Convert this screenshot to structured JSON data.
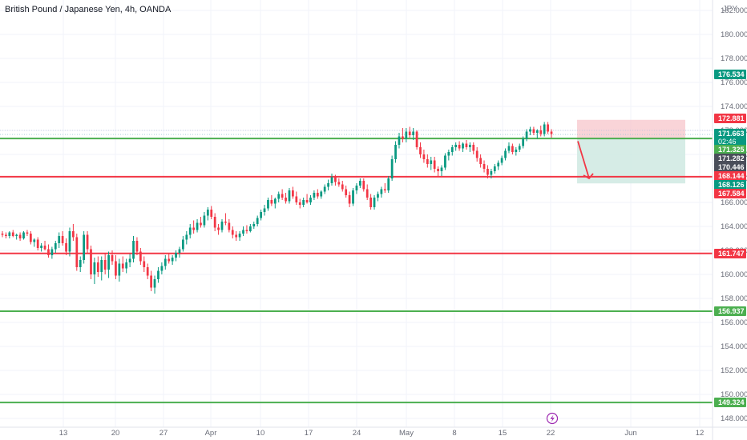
{
  "header": {
    "title": "British Pound / Japanese Yen, 4h, OANDA",
    "currency": "JPY"
  },
  "chart_data": {
    "type": "candlestick",
    "title": "British Pound / Japanese Yen, 4h, OANDA",
    "ylabel": "JPY",
    "ylim": [
      147.2,
      182.4
    ],
    "y_ticks": [
      "148.000",
      "150.000",
      "152.000",
      "154.000",
      "156.000",
      "158.000",
      "160.000",
      "162.000",
      "164.000",
      "166.000",
      "168.000",
      "170.000",
      "172.000",
      "174.000",
      "176.000",
      "178.000",
      "180.000",
      "182.000"
    ],
    "x_ticks": [
      "13",
      "20",
      "27",
      "Apr",
      "10",
      "17",
      "24",
      "May",
      "8",
      "15",
      "22",
      "Jun",
      "12"
    ],
    "horizontal_lines": [
      {
        "price": 171.325,
        "color": "#4caf50"
      },
      {
        "price": 168.144,
        "color": "#f23645"
      },
      {
        "price": 161.747,
        "color": "#f23645"
      },
      {
        "price": 156.937,
        "color": "#4caf50"
      },
      {
        "price": 149.324,
        "color": "#4caf50"
      }
    ],
    "price_tags": [
      {
        "label": "176.534",
        "price": 176.534,
        "color": "#089981"
      },
      {
        "label": "172.881",
        "price": 172.881,
        "color": "#f23645"
      },
      {
        "label": "171.663",
        "sub": "02:46",
        "price": 171.663,
        "color": "#089981"
      },
      {
        "label": "171.325",
        "price": 171.325,
        "color": "#4caf50"
      },
      {
        "label": "171.282",
        "price": 171.282,
        "color": "#4a4e5a"
      },
      {
        "label": "170.446",
        "price": 170.446,
        "color": "#4a4e5a"
      },
      {
        "label": "168.144",
        "price": 168.144,
        "color": "#f23645"
      },
      {
        "label": "168.126",
        "price": 168.126,
        "color": "#089981"
      },
      {
        "label": "167.584",
        "price": 167.584,
        "color": "#f23645"
      },
      {
        "label": "161.747",
        "price": 161.747,
        "color": "#f23645"
      },
      {
        "label": "156.937",
        "price": 156.937,
        "color": "#4caf50"
      },
      {
        "label": "149.324",
        "price": 149.324,
        "color": "#4caf50"
      }
    ],
    "position_tool": {
      "entry": 171.325,
      "stop": 172.881,
      "target": 167.584,
      "stop_color": "#f7c6cb",
      "target_color": "#cfe9e2"
    },
    "ohlc": [
      [
        163.4,
        163.6,
        163.1,
        163.3
      ],
      [
        163.3,
        163.5,
        163.0,
        163.2
      ],
      [
        163.2,
        163.6,
        163.0,
        163.5
      ],
      [
        163.5,
        163.7,
        163.1,
        163.2
      ],
      [
        163.2,
        163.4,
        162.9,
        163.3
      ],
      [
        163.3,
        163.5,
        162.8,
        163.0
      ],
      [
        163.0,
        163.6,
        162.9,
        163.5
      ],
      [
        163.5,
        163.7,
        163.2,
        163.4
      ],
      [
        163.4,
        163.6,
        162.5,
        162.7
      ],
      [
        162.7,
        163.0,
        162.3,
        162.9
      ],
      [
        162.9,
        163.1,
        162.0,
        162.2
      ],
      [
        162.2,
        162.6,
        161.9,
        162.4
      ],
      [
        162.4,
        162.8,
        162.0,
        162.1
      ],
      [
        162.1,
        162.5,
        161.4,
        161.6
      ],
      [
        161.6,
        162.3,
        161.3,
        162.1
      ],
      [
        162.1,
        162.8,
        161.8,
        162.6
      ],
      [
        162.6,
        163.5,
        162.2,
        163.2
      ],
      [
        163.2,
        163.6,
        162.4,
        162.6
      ],
      [
        162.6,
        163.0,
        161.6,
        161.9
      ],
      [
        161.9,
        163.9,
        161.5,
        163.6
      ],
      [
        163.6,
        164.2,
        162.8,
        163.1
      ],
      [
        163.1,
        163.4,
        160.3,
        160.6
      ],
      [
        160.6,
        161.5,
        160.2,
        161.2
      ],
      [
        161.2,
        163.6,
        160.9,
        163.3
      ],
      [
        163.3,
        163.6,
        161.8,
        162.1
      ],
      [
        162.1,
        162.4,
        159.6,
        160.0
      ],
      [
        160.0,
        161.4,
        159.2,
        161.0
      ],
      [
        161.0,
        161.5,
        159.8,
        160.2
      ],
      [
        160.2,
        161.5,
        159.5,
        161.2
      ],
      [
        161.2,
        161.8,
        160.0,
        160.4
      ],
      [
        160.4,
        161.9,
        159.7,
        161.6
      ],
      [
        161.6,
        162.0,
        160.8,
        161.1
      ],
      [
        161.1,
        161.6,
        159.6,
        159.9
      ],
      [
        159.9,
        161.3,
        159.4,
        160.9
      ],
      [
        160.9,
        161.5,
        160.2,
        160.5
      ],
      [
        160.5,
        161.3,
        160.1,
        161.0
      ],
      [
        161.0,
        161.7,
        160.6,
        161.3
      ],
      [
        161.3,
        163.2,
        161.0,
        162.8
      ],
      [
        162.8,
        163.1,
        161.6,
        161.9
      ],
      [
        161.9,
        162.2,
        160.8,
        161.1
      ],
      [
        161.1,
        161.5,
        160.2,
        160.6
      ],
      [
        160.6,
        160.9,
        159.6,
        159.9
      ],
      [
        159.9,
        160.3,
        158.6,
        158.9
      ],
      [
        158.9,
        159.9,
        158.4,
        159.6
      ],
      [
        159.6,
        160.6,
        159.3,
        160.3
      ],
      [
        160.3,
        161.0,
        160.0,
        160.7
      ],
      [
        160.7,
        161.6,
        160.4,
        161.3
      ],
      [
        161.3,
        161.8,
        160.9,
        161.1
      ],
      [
        161.1,
        161.6,
        160.8,
        161.4
      ],
      [
        161.4,
        162.0,
        161.1,
        161.8
      ],
      [
        161.8,
        162.3,
        161.4,
        162.1
      ],
      [
        162.1,
        163.2,
        161.9,
        162.9
      ],
      [
        162.9,
        163.6,
        162.5,
        163.3
      ],
      [
        163.3,
        164.2,
        163.0,
        163.9
      ],
      [
        163.9,
        164.5,
        163.4,
        163.7
      ],
      [
        163.7,
        164.6,
        163.5,
        164.3
      ],
      [
        164.3,
        164.8,
        163.9,
        164.1
      ],
      [
        164.1,
        165.2,
        163.9,
        164.9
      ],
      [
        164.9,
        165.6,
        164.5,
        165.4
      ],
      [
        165.4,
        165.7,
        164.6,
        164.8
      ],
      [
        164.8,
        165.1,
        163.6,
        163.9
      ],
      [
        163.9,
        164.2,
        163.3,
        163.7
      ],
      [
        163.7,
        164.6,
        163.5,
        164.4
      ],
      [
        164.4,
        165.1,
        164.1,
        164.3
      ],
      [
        164.3,
        164.6,
        163.5,
        163.7
      ],
      [
        163.7,
        164.0,
        163.0,
        163.3
      ],
      [
        163.3,
        163.6,
        162.8,
        163.1
      ],
      [
        163.1,
        163.6,
        162.8,
        163.4
      ],
      [
        163.4,
        164.0,
        163.2,
        163.7
      ],
      [
        163.7,
        164.1,
        163.4,
        163.6
      ],
      [
        163.6,
        164.2,
        163.5,
        164.0
      ],
      [
        164.0,
        164.4,
        163.8,
        164.2
      ],
      [
        164.2,
        164.9,
        164.0,
        164.7
      ],
      [
        164.7,
        165.4,
        164.5,
        165.2
      ],
      [
        165.2,
        165.8,
        164.9,
        165.5
      ],
      [
        165.5,
        166.4,
        165.3,
        166.2
      ],
      [
        166.2,
        166.6,
        165.7,
        165.9
      ],
      [
        165.9,
        166.4,
        165.5,
        166.3
      ],
      [
        166.3,
        166.9,
        166.0,
        166.7
      ],
      [
        166.7,
        167.1,
        166.2,
        166.4
      ],
      [
        166.4,
        166.8,
        165.9,
        166.1
      ],
      [
        166.1,
        167.2,
        165.9,
        167.0
      ],
      [
        167.0,
        167.3,
        166.3,
        166.5
      ],
      [
        166.5,
        166.9,
        165.8,
        166.0
      ],
      [
        166.0,
        166.3,
        165.5,
        165.8
      ],
      [
        165.8,
        166.4,
        165.6,
        166.2
      ],
      [
        166.2,
        166.7,
        165.9,
        166.0
      ],
      [
        166.0,
        166.6,
        165.8,
        166.4
      ],
      [
        166.4,
        167.0,
        166.2,
        166.8
      ],
      [
        166.8,
        167.1,
        166.3,
        166.5
      ],
      [
        166.5,
        167.0,
        166.3,
        166.9
      ],
      [
        166.9,
        167.5,
        166.7,
        167.3
      ],
      [
        167.3,
        167.9,
        167.0,
        167.6
      ],
      [
        167.6,
        168.4,
        167.4,
        168.1
      ],
      [
        168.1,
        168.3,
        167.4,
        167.7
      ],
      [
        167.7,
        168.0,
        167.3,
        167.5
      ],
      [
        167.5,
        167.8,
        166.9,
        167.1
      ],
      [
        167.1,
        167.4,
        166.4,
        166.6
      ],
      [
        166.6,
        166.9,
        165.6,
        165.9
      ],
      [
        165.9,
        167.2,
        165.7,
        167.0
      ],
      [
        167.0,
        167.6,
        166.7,
        167.4
      ],
      [
        167.4,
        168.0,
        167.2,
        167.8
      ],
      [
        167.8,
        168.0,
        166.9,
        167.1
      ],
      [
        167.1,
        167.5,
        166.2,
        166.4
      ],
      [
        166.4,
        166.7,
        165.4,
        165.6
      ],
      [
        165.6,
        166.6,
        165.4,
        166.4
      ],
      [
        166.4,
        166.9,
        166.1,
        166.7
      ],
      [
        166.7,
        167.3,
        166.4,
        167.1
      ],
      [
        167.1,
        167.6,
        166.8,
        167.0
      ],
      [
        167.0,
        168.2,
        166.8,
        168.0
      ],
      [
        168.0,
        169.9,
        167.8,
        169.6
      ],
      [
        169.6,
        171.1,
        169.3,
        170.8
      ],
      [
        170.8,
        171.8,
        170.5,
        171.5
      ],
      [
        171.5,
        172.2,
        171.0,
        171.3
      ],
      [
        171.3,
        172.2,
        171.0,
        171.9
      ],
      [
        171.9,
        172.3,
        171.4,
        171.6
      ],
      [
        171.6,
        172.2,
        171.2,
        171.9
      ],
      [
        171.9,
        172.0,
        170.4,
        170.6
      ],
      [
        170.6,
        171.0,
        169.7,
        170.0
      ],
      [
        170.0,
        170.4,
        169.3,
        169.6
      ],
      [
        169.6,
        170.0,
        168.9,
        169.2
      ],
      [
        169.2,
        169.8,
        168.7,
        169.5
      ],
      [
        169.5,
        169.8,
        168.5,
        168.8
      ],
      [
        168.8,
        169.0,
        168.1,
        168.6
      ],
      [
        168.6,
        169.1,
        168.2,
        168.9
      ],
      [
        168.9,
        170.1,
        168.7,
        169.9
      ],
      [
        169.9,
        170.4,
        169.5,
        170.2
      ],
      [
        170.2,
        170.8,
        169.9,
        170.6
      ],
      [
        170.6,
        171.0,
        170.3,
        170.8
      ],
      [
        170.8,
        171.1,
        170.3,
        170.5
      ],
      [
        170.5,
        171.0,
        170.2,
        170.9
      ],
      [
        170.9,
        171.2,
        170.4,
        170.6
      ],
      [
        170.6,
        171.0,
        170.2,
        170.8
      ],
      [
        170.8,
        171.0,
        170.0,
        170.3
      ],
      [
        170.3,
        170.6,
        169.4,
        169.7
      ],
      [
        169.7,
        170.0,
        168.9,
        169.2
      ],
      [
        169.2,
        169.5,
        168.5,
        168.8
      ],
      [
        168.8,
        169.1,
        168.0,
        168.3
      ],
      [
        168.3,
        168.8,
        168.0,
        168.6
      ],
      [
        168.6,
        169.2,
        168.4,
        169.0
      ],
      [
        169.0,
        169.5,
        168.7,
        169.3
      ],
      [
        169.3,
        169.9,
        169.1,
        169.7
      ],
      [
        169.7,
        170.5,
        169.5,
        170.3
      ],
      [
        170.3,
        171.0,
        170.1,
        170.7
      ],
      [
        170.7,
        170.9,
        170.0,
        170.2
      ],
      [
        170.2,
        170.6,
        169.9,
        170.4
      ],
      [
        170.4,
        170.9,
        170.2,
        170.7
      ],
      [
        170.7,
        171.5,
        170.5,
        171.3
      ],
      [
        171.3,
        172.1,
        171.1,
        171.9
      ],
      [
        171.9,
        172.3,
        171.6,
        172.1
      ],
      [
        172.1,
        172.3,
        171.6,
        171.8
      ],
      [
        171.8,
        172.1,
        171.3,
        172.0
      ],
      [
        172.0,
        172.4,
        171.5,
        171.7
      ],
      [
        171.7,
        172.7,
        171.5,
        172.5
      ],
      [
        172.5,
        172.7,
        171.7,
        171.9
      ],
      [
        171.9,
        172.1,
        171.4,
        171.7
      ]
    ]
  },
  "badges": {
    "flash_icon": "lightning-icon"
  }
}
